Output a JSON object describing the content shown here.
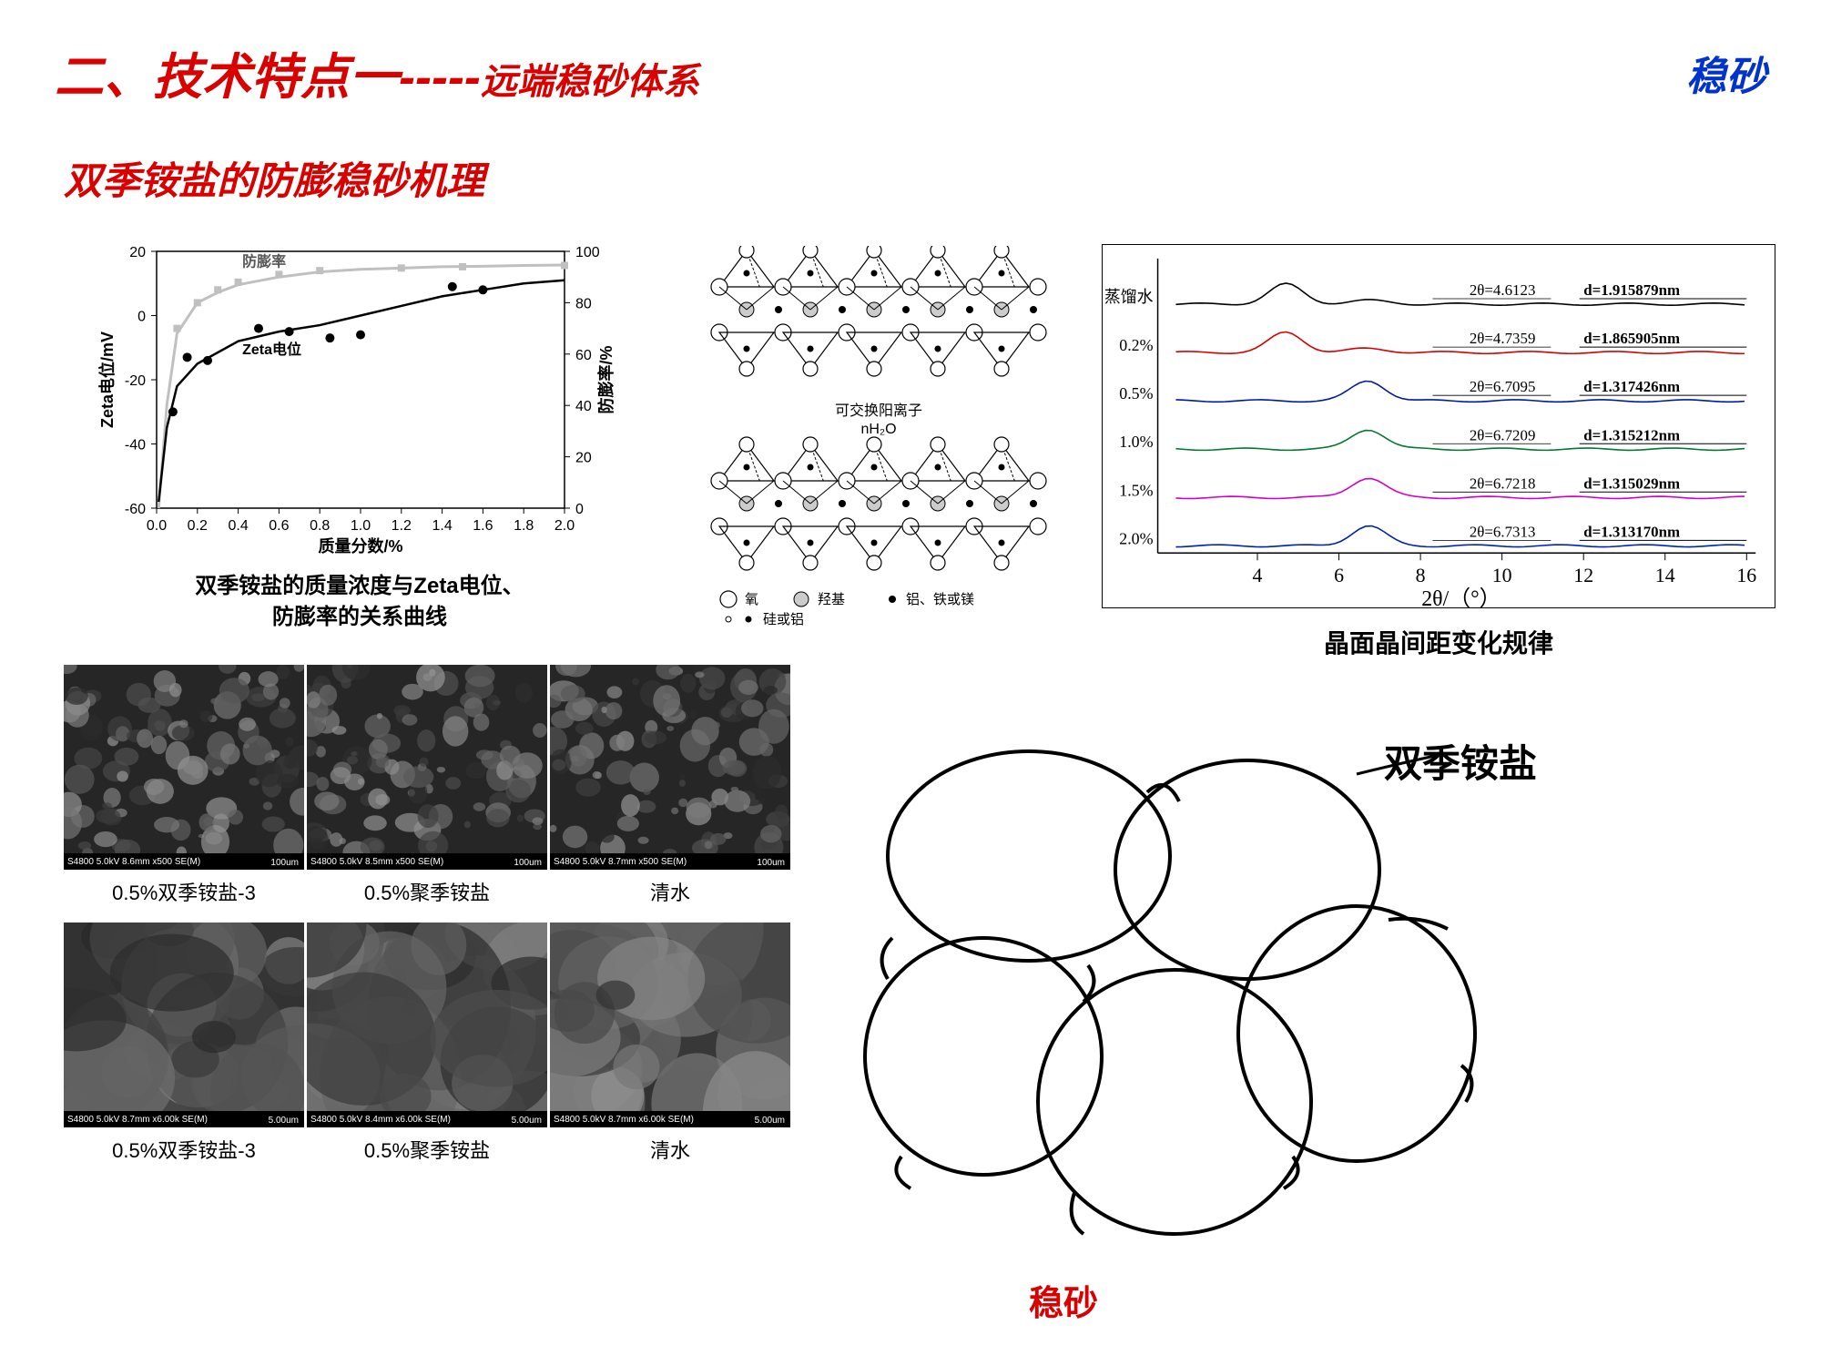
{
  "header": {
    "title_main": "二、技术特点一",
    "title_dashes": "-----",
    "title_sub": "远端稳砂体系",
    "corner": "稳砂"
  },
  "subtitle": "双季铵盐的防膨稳砂机理",
  "zeta_chart": {
    "type": "line+scatter",
    "caption_line1": "双季铵盐的质量浓度与Zeta电位、",
    "caption_line2": "防膨率的关系曲线",
    "xlabel": "质量分数/%",
    "ylabel_left": "Zeta电位/mV",
    "ylabel_right": "防膨率/%",
    "series1_label": "Zeta电位",
    "series2_label": "防膨率",
    "xlim": [
      0.0,
      2.0
    ],
    "xtick_step": 0.2,
    "ylim_left": [
      -60,
      20
    ],
    "ytick_left_step": 20,
    "ylim_right": [
      0,
      100
    ],
    "ytick_right_step": 20,
    "zeta_line": [
      [
        0.01,
        -58
      ],
      [
        0.05,
        -35
      ],
      [
        0.1,
        -22
      ],
      [
        0.2,
        -15
      ],
      [
        0.4,
        -8
      ],
      [
        0.6,
        -5
      ],
      [
        0.8,
        -3
      ],
      [
        1.0,
        0
      ],
      [
        1.2,
        3
      ],
      [
        1.4,
        6
      ],
      [
        1.6,
        8
      ],
      [
        1.8,
        10
      ],
      [
        2.0,
        11
      ]
    ],
    "zeta_points": [
      [
        0.08,
        -30
      ],
      [
        0.15,
        -13
      ],
      [
        0.25,
        -14
      ],
      [
        0.5,
        -4
      ],
      [
        0.65,
        -5
      ],
      [
        0.85,
        -7
      ],
      [
        1.0,
        -6
      ],
      [
        1.45,
        9
      ],
      [
        1.6,
        8
      ]
    ],
    "swell_line": [
      [
        0.01,
        0
      ],
      [
        0.05,
        40
      ],
      [
        0.1,
        68
      ],
      [
        0.2,
        80
      ],
      [
        0.3,
        84
      ],
      [
        0.4,
        87
      ],
      [
        0.6,
        90
      ],
      [
        0.8,
        92
      ],
      [
        1.0,
        93
      ],
      [
        1.2,
        93.5
      ],
      [
        1.4,
        94
      ],
      [
        1.6,
        94.2
      ],
      [
        1.8,
        94.5
      ],
      [
        2.0,
        94.7
      ]
    ],
    "swell_points": [
      [
        0.1,
        70
      ],
      [
        0.2,
        80
      ],
      [
        0.3,
        85
      ],
      [
        0.4,
        88
      ],
      [
        0.6,
        91
      ],
      [
        0.8,
        92.5
      ],
      [
        1.2,
        93.5
      ],
      [
        1.5,
        94
      ],
      [
        2.0,
        94.5
      ]
    ],
    "zeta_line_color": "#000000",
    "zeta_point_color": "#000000",
    "swell_line_color": "#c0c0c0",
    "swell_point_color": "#c0c0c0",
    "axis_color": "#000000",
    "tick_fontsize": 16,
    "label_fontsize": 18
  },
  "crystal": {
    "legend": {
      "oxygen": "氧",
      "hydroxyl": "羟基",
      "al_fe_mg": "铝、铁或镁",
      "si_al": "硅或铝"
    },
    "interlayer_label1": "可交换阳离子",
    "interlayer_label2": "nH₂O"
  },
  "xrd": {
    "type": "stacked-line",
    "caption": "晶面晶间距变化规律",
    "xlabel": "2θ/（°）",
    "xlim": [
      2,
      16
    ],
    "xticks": [
      4,
      6,
      8,
      10,
      12,
      14,
      16
    ],
    "tick_fontsize": 22,
    "label_fontsize": 24,
    "anno_fontsize": 17,
    "curves": [
      {
        "label": "蒸馏水",
        "color": "#000000",
        "theta": "2θ=4.6123",
        "d": "d=1.915879nm",
        "y_offset": 5
      },
      {
        "label": "0.2%",
        "color": "#d60000",
        "theta": "2θ=4.7359",
        "d": "d=1.865905nm",
        "y_offset": 4
      },
      {
        "label": "0.5%",
        "color": "#001a9a",
        "theta": "2θ=6.7095",
        "d": "d=1.317426nm",
        "y_offset": 3
      },
      {
        "label": "1.0%",
        "color": "#007a2e",
        "theta": "2θ=6.7209",
        "d": "d=1.315212nm",
        "y_offset": 2
      },
      {
        "label": "1.5%",
        "color": "#d400c8",
        "theta": "2θ=6.7218",
        "d": "d=1.315029nm",
        "y_offset": 1
      },
      {
        "label": "2.0%",
        "color": "#0020b0",
        "theta": "2θ=6.7313",
        "d": "d=1.313170nm",
        "y_offset": 0
      }
    ]
  },
  "sem": {
    "row1": [
      {
        "label": "0.5%双季铵盐-3",
        "bar": "S4800 5.0kV 8.6mm x500 SE(M)",
        "scale": "100um"
      },
      {
        "label": "0.5%聚季铵盐",
        "bar": "S4800 5.0kV 8.5mm x500 SE(M)",
        "scale": "100um"
      },
      {
        "label": "清水",
        "bar": "S4800 5.0kV 8.7mm x500 SE(M)",
        "scale": "100um"
      }
    ],
    "row2": [
      {
        "label": "0.5%双季铵盐-3",
        "bar": "S4800 5.0kV 8.7mm x6.00k SE(M)",
        "scale": "5.00um"
      },
      {
        "label": "0.5%聚季铵盐",
        "bar": "S4800 5.0kV 8.4mm x6.00k SE(M)",
        "scale": "5.00um"
      },
      {
        "label": "清水",
        "bar": "S4800 5.0kV 8.7mm x6.00k SE(M)",
        "scale": "5.00um"
      }
    ],
    "label_fontsize": 22
  },
  "grain": {
    "label_compound": "双季铵盐",
    "label_effect": "稳砂"
  }
}
